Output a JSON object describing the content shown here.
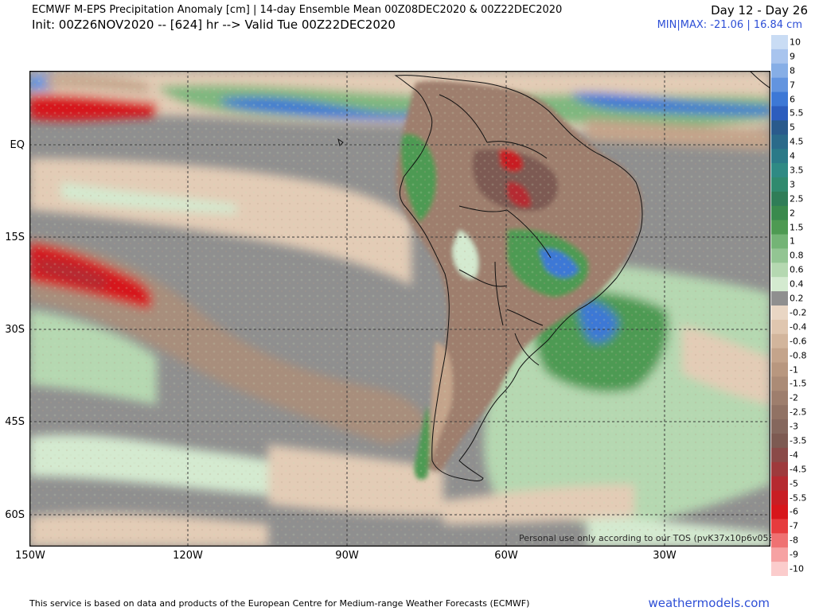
{
  "header": {
    "title": "ECMWF M-EPS Precipitation Anomaly [cm] | 14-day Ensemble Mean 00Z08DEC2020 & 00Z22DEC2020",
    "init": "Init: 00Z26NOV2020 -- [624] hr --> Valid Tue 00Z22DEC2020",
    "day_range": "Day 12 - Day 26",
    "minmax": "MIN|MAX: -21.06 | 16.84 cm"
  },
  "map": {
    "lat_labels": [
      "EQ",
      "15S",
      "30S",
      "45S",
      "60S"
    ],
    "lon_labels": [
      "150W",
      "120W",
      "90W",
      "60W",
      "30W"
    ],
    "disclaimer": "Personal use only according to our TOS (pvK37x10p6v053)"
  },
  "colorbar": {
    "labels": [
      "10",
      "9",
      "8",
      "7",
      "6",
      "5.5",
      "5",
      "4.5",
      "4",
      "3.5",
      "3",
      "2.5",
      "2",
      "1.5",
      "1",
      "0.8",
      "0.6",
      "0.4",
      "0.2",
      "-0.2",
      "-0.4",
      "-0.6",
      "-0.8",
      "-1",
      "-1.5",
      "-2",
      "-2.5",
      "-3",
      "-3.5",
      "-4",
      "-4.5",
      "-5",
      "-5.5",
      "-6",
      "-7",
      "-8",
      "-9",
      "-10"
    ],
    "colors": [
      "#c9dcf4",
      "#a8c4ee",
      "#86aee6",
      "#6294df",
      "#3d78d6",
      "#2c5dbe",
      "#2a5a8c",
      "#2b6a8a",
      "#2b7a88",
      "#2f8a84",
      "#308a6e",
      "#2f7d57",
      "#3a8a4d",
      "#4e9a52",
      "#74b476",
      "#93c593",
      "#b5d8b1",
      "#d4ead0",
      "#8f8f8f",
      "#e9d6c4",
      "#dfc6af",
      "#d2b59c",
      "#c4a48b",
      "#b8977f",
      "#ab8b76",
      "#9e7e6d",
      "#917264",
      "#85675d",
      "#7d5a52",
      "#8a4a48",
      "#9e3a3c",
      "#b52a30",
      "#c81e24",
      "#d7161b",
      "#e63c3e",
      "#ef7172",
      "#f6a2a3",
      "#fbcccc"
    ]
  },
  "footer": {
    "notice": "This service is based on data and products of the European Centre for Medium-range Weather Forecasts (ECMWF)",
    "brand": "weathermodels.com"
  }
}
